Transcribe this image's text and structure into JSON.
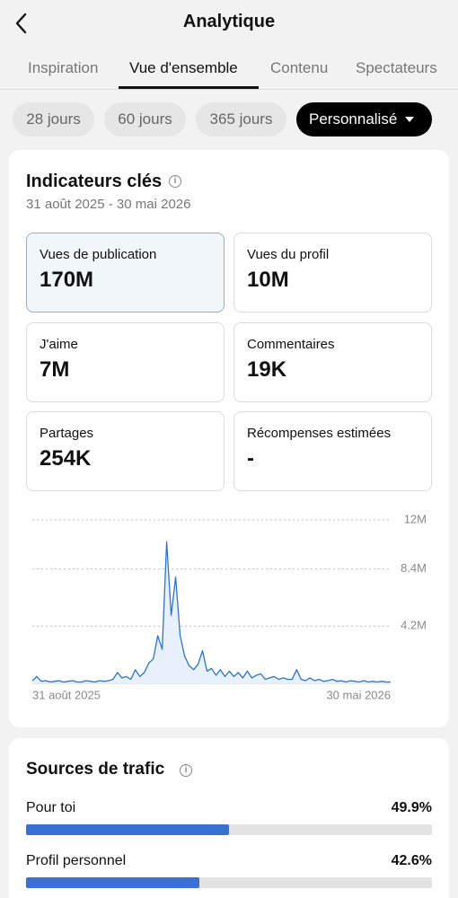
{
  "header": {
    "title": "Analytique"
  },
  "tabs": {
    "items": [
      "Inspiration",
      "Vue d'ensemble",
      "Contenu",
      "Spectateurs"
    ],
    "active": 1
  },
  "filters": {
    "items": [
      "28 jours",
      "60 jours",
      "365 jours",
      "Personnalisé"
    ],
    "active": 3
  },
  "key_indicators": {
    "title": "Indicateurs clés",
    "date_range": "31 août 2025 - 30 mai 2026",
    "cards": [
      {
        "label": "Vues de publication",
        "value": "170M"
      },
      {
        "label": "Vues du profil",
        "value": "10M"
      },
      {
        "label": "J'aime",
        "value": "7M"
      },
      {
        "label": "Commentaires",
        "value": "19K"
      },
      {
        "label": "Partages",
        "value": "254K"
      },
      {
        "label": "Récompenses estimées",
        "value": "-"
      }
    ],
    "selected": 0
  },
  "chart_data": {
    "type": "line",
    "categories": [
      "31 août 2025",
      null,
      null,
      null,
      null,
      null,
      null,
      null,
      null,
      null,
      null,
      null,
      null,
      null,
      null,
      null,
      null,
      null,
      null,
      null,
      null,
      null,
      null,
      null,
      null,
      null,
      null,
      null,
      null,
      null,
      null,
      null,
      null,
      null,
      null,
      null,
      null,
      null,
      null,
      null,
      null,
      null,
      null,
      null,
      null,
      null,
      null,
      null,
      null,
      null,
      null,
      null,
      null,
      null,
      null,
      null,
      null,
      null,
      null,
      null,
      null,
      null,
      null,
      null,
      null,
      null,
      null,
      null,
      null,
      null,
      null,
      null,
      null,
      null,
      null,
      null,
      null,
      null,
      null,
      null,
      "30 mai 2026"
    ],
    "series": [
      {
        "color": "#2f74c9",
        "values": [
          0.2,
          0.5,
          0.15,
          0.2,
          0.1,
          0.15,
          0.2,
          0.1,
          0.15,
          0.2,
          0.1,
          0.1,
          0.2,
          0.15,
          0.1,
          0.2,
          0.15,
          0.2,
          0.3,
          0.8,
          0.4,
          0.5,
          0.3,
          1.0,
          0.5,
          0.8,
          1.5,
          1.8,
          3.5,
          2.5,
          10.4,
          5.0,
          7.8,
          3.5,
          2.0,
          1.3,
          1.0,
          1.4,
          2.4,
          0.9,
          1.1,
          0.6,
          1.0,
          0.5,
          0.9,
          0.5,
          0.8,
          0.4,
          0.9,
          0.4,
          0.6,
          0.7,
          0.3,
          0.4,
          0.5,
          0.3,
          0.4,
          0.3,
          0.3,
          1.0,
          0.3,
          0.2,
          0.4,
          0.2,
          0.3,
          0.15,
          0.2,
          0.3,
          0.15,
          0.2,
          0.1,
          0.2,
          0.15,
          0.1,
          0.2,
          0.1,
          0.15,
          0.1,
          0.15,
          0.1,
          0.1
        ]
      }
    ],
    "ylim": [
      0,
      12
    ],
    "yticks": [
      {
        "value": 4.2,
        "label": "4.2M"
      },
      {
        "value": 8.4,
        "label": "8.4M"
      },
      {
        "value": 12,
        "label": "12M"
      }
    ],
    "grid": true,
    "area_fill": "#e8f1fb"
  },
  "traffic": {
    "title": "Sources de trafic",
    "color": "#3a70d2",
    "max": 100,
    "sources": [
      {
        "label": "Pour toi",
        "value": 49.9,
        "value_label": "49.9%"
      },
      {
        "label": "Profil personnel",
        "value": 42.6,
        "value_label": "42.6%"
      }
    ]
  }
}
